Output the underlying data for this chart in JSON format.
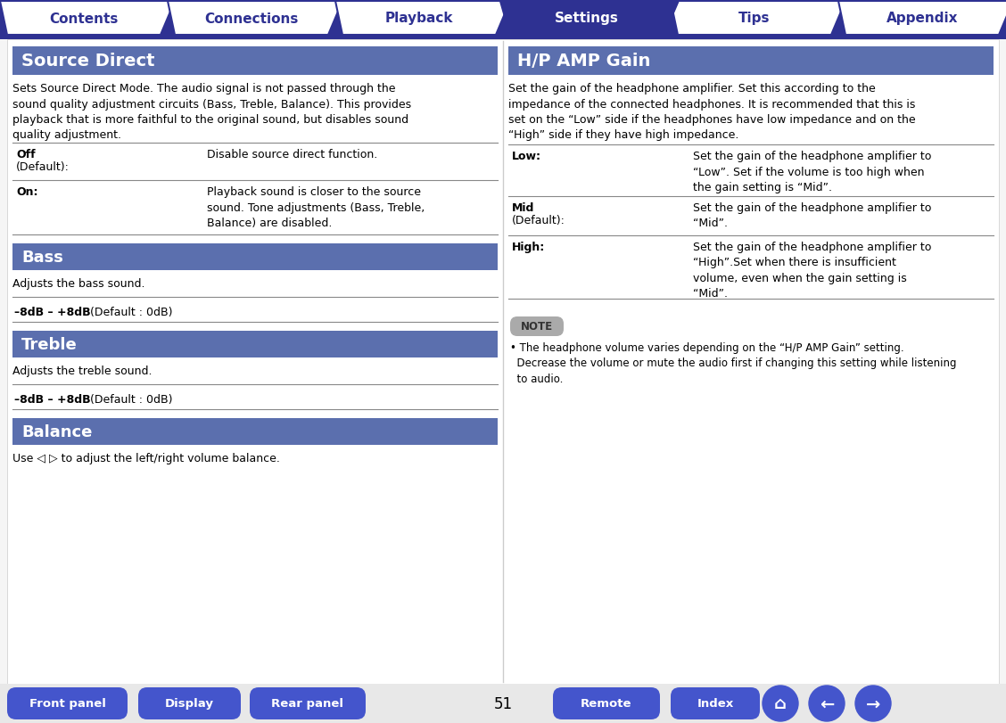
{
  "bg_color": "#f5f5f5",
  "page_num": "51",
  "tab_bar_color": "#2e3192",
  "tabs": [
    "Contents",
    "Connections",
    "Playback",
    "Settings",
    "Tips",
    "Appendix"
  ],
  "active_tab": "Settings",
  "active_tab_color": "#2e3192",
  "inactive_tab_color": "#ffffff",
  "active_tab_text_color": "#ffffff",
  "inactive_tab_text_color": "#2e3192",
  "section_header_color": "#5b6fae",
  "section_header_text_color": "#ffffff",
  "body_text_color": "#000000",
  "divider_color": "#888888",
  "bottom_btn_color": "#4455cc",
  "bottom_btn_text_color": "#ffffff",
  "note_bg_color": "#aaaaaa",
  "content_border_color": "#cccccc"
}
